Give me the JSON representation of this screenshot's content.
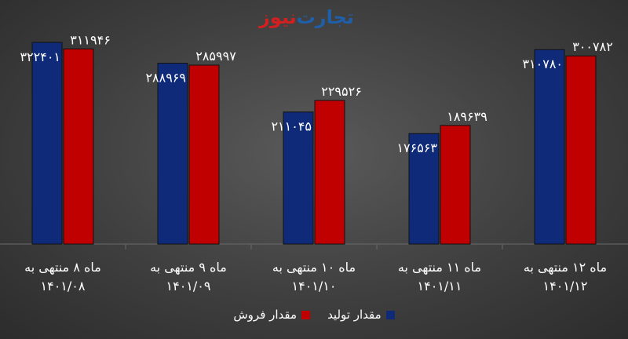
{
  "logo": {
    "part_a": "تجارت",
    "part_b": "نیوز"
  },
  "chart_data": {
    "type": "bar",
    "categories": [
      [
        "ماه ۸ منتهی به",
        "۱۴۰۱/۰۸"
      ],
      [
        "ماه ۹ منتهی به",
        "۱۴۰۱/۰۹"
      ],
      [
        "ماه ۱۰ منتهی به",
        "۱۴۰۱/۱۰"
      ],
      [
        "ماه ۱۱ منتهی به",
        "۱۴۰۱/۱۱"
      ],
      [
        "ماه ۱۲ منتهی به",
        "۱۴۰۱/۱۲"
      ]
    ],
    "series": [
      {
        "name": "مقدار تولید",
        "color": "#0e2a78",
        "values": [
          322401,
          288969,
          211045,
          176563,
          310780
        ],
        "labels": [
          "۳۲۲۴۰۱",
          "۲۸۸۹۶۹",
          "۲۱۱۰۴۵",
          "۱۷۶۵۶۳",
          "۳۱۰۷۸۰"
        ]
      },
      {
        "name": "مقدار فروش",
        "color": "#c00000",
        "values": [
          311946,
          285997,
          229526,
          189639,
          300782
        ],
        "labels": [
          "۳۱۱۹۴۶",
          "۲۸۵۹۹۷",
          "۲۲۹۵۲۶",
          "۱۸۹۶۳۹",
          "۳۰۰۷۸۲"
        ]
      }
    ],
    "ylim": [
      0,
      365000
    ],
    "grid": false,
    "legend_position": "bottom"
  }
}
